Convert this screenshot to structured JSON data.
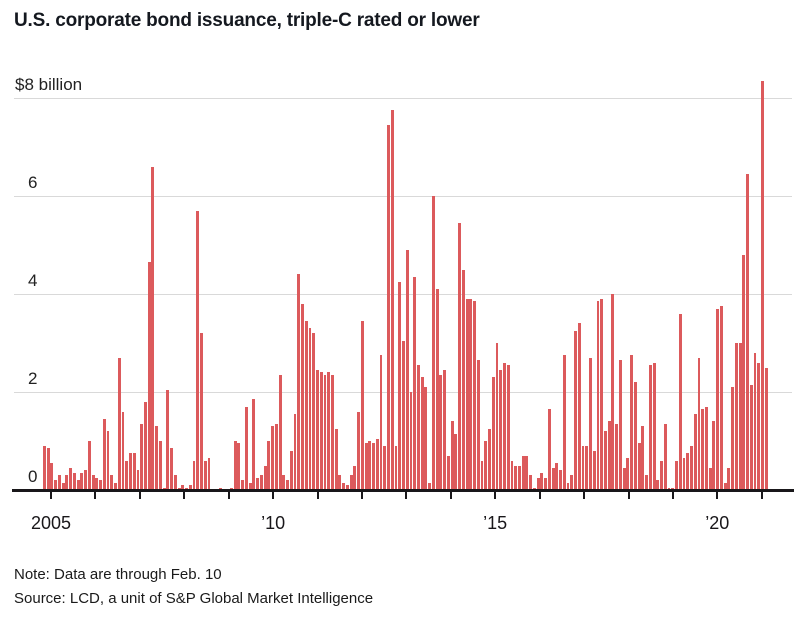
{
  "title": "U.S. corporate bond issuance, triple-C rated or lower",
  "note": "Note: Data are through Feb. 10",
  "source": "Source: LCD, a unit of S&P Global Market Intelligence",
  "colors": {
    "bar": "#dc5a5c",
    "grid": "#d9d9d9",
    "axis": "#19171a",
    "title_text": "#14181f"
  },
  "chart_data": {
    "type": "bar",
    "title": "U.S. corporate bond issuance, triple-C rated or lower",
    "unit": "billion USD",
    "frequency": "monthly",
    "start": "2005-01",
    "end": "2021-02",
    "ylim": [
      0,
      8.5
    ],
    "grid": "horizontal",
    "legend": "none",
    "yticks": [
      0,
      2,
      4,
      6,
      8
    ],
    "ytick_labels": [
      "0",
      "2",
      "4",
      "6",
      "$8 billion"
    ],
    "xtick_years": [
      2005,
      2006,
      2007,
      2008,
      2009,
      2010,
      2011,
      2012,
      2013,
      2014,
      2015,
      2016,
      2017,
      2018,
      2019,
      2020,
      2021
    ],
    "xtick_labels": [
      {
        "year": 2005,
        "label": "2005"
      },
      {
        "year": 2010,
        "label": "’10"
      },
      {
        "year": 2015,
        "label": "’15"
      },
      {
        "year": 2020,
        "label": "’20"
      }
    ],
    "series": [
      {
        "name": "Triple-C rated or lower issuance ($ billion)",
        "values": [
          0.9,
          0.85,
          0.55,
          0.2,
          0.3,
          0.15,
          0.3,
          0.45,
          0.35,
          0.2,
          0.35,
          0.4,
          1.0,
          0.3,
          0.25,
          0.2,
          1.45,
          1.2,
          0.3,
          0.15,
          2.7,
          1.6,
          0.6,
          0.75,
          0.75,
          0.4,
          1.35,
          1.8,
          4.65,
          6.6,
          1.3,
          1.0,
          0.05,
          2.05,
          0.85,
          0.3,
          0.05,
          0.1,
          0.05,
          0.1,
          0.6,
          5.7,
          3.2,
          0.6,
          0.65,
          0.0,
          0.0,
          0.05,
          0.0,
          0.0,
          0.05,
          1.0,
          0.95,
          0.2,
          1.7,
          0.15,
          1.85,
          0.25,
          0.3,
          0.5,
          1.0,
          1.3,
          1.35,
          2.35,
          0.3,
          0.2,
          0.8,
          1.55,
          4.4,
          3.8,
          3.45,
          3.3,
          3.2,
          2.45,
          2.4,
          2.35,
          2.4,
          2.35,
          1.25,
          0.3,
          0.15,
          0.1,
          0.3,
          0.5,
          1.6,
          3.45,
          0.95,
          1.0,
          0.95,
          1.05,
          2.75,
          0.9,
          7.45,
          7.75,
          0.9,
          4.25,
          3.05,
          4.9,
          2.0,
          4.35,
          2.55,
          2.3,
          2.1,
          0.15,
          6.0,
          4.1,
          2.35,
          2.45,
          0.7,
          1.4,
          1.15,
          5.45,
          4.5,
          3.9,
          3.9,
          3.85,
          2.65,
          0.6,
          1.0,
          1.25,
          2.3,
          3.0,
          2.45,
          2.6,
          2.55,
          0.6,
          0.5,
          0.5,
          0.7,
          0.7,
          0.3,
          0.05,
          0.25,
          0.35,
          0.25,
          1.65,
          0.45,
          0.55,
          0.4,
          2.75,
          0.15,
          0.3,
          3.25,
          3.4,
          0.9,
          0.9,
          2.7,
          0.8,
          3.85,
          3.9,
          1.2,
          1.4,
          4.0,
          1.35,
          2.65,
          0.45,
          0.65,
          2.75,
          2.2,
          0.95,
          1.3,
          0.3,
          2.55,
          2.6,
          0.2,
          0.6,
          1.35,
          0.05,
          0.05,
          0.6,
          3.6,
          0.65,
          0.75,
          0.9,
          1.55,
          2.7,
          1.65,
          1.7,
          0.45,
          1.4,
          3.7,
          3.75,
          0.15,
          0.45,
          2.1,
          3.0,
          3.0,
          4.8,
          6.45,
          2.15,
          2.8,
          2.6,
          8.35,
          2.5
        ]
      }
    ]
  }
}
